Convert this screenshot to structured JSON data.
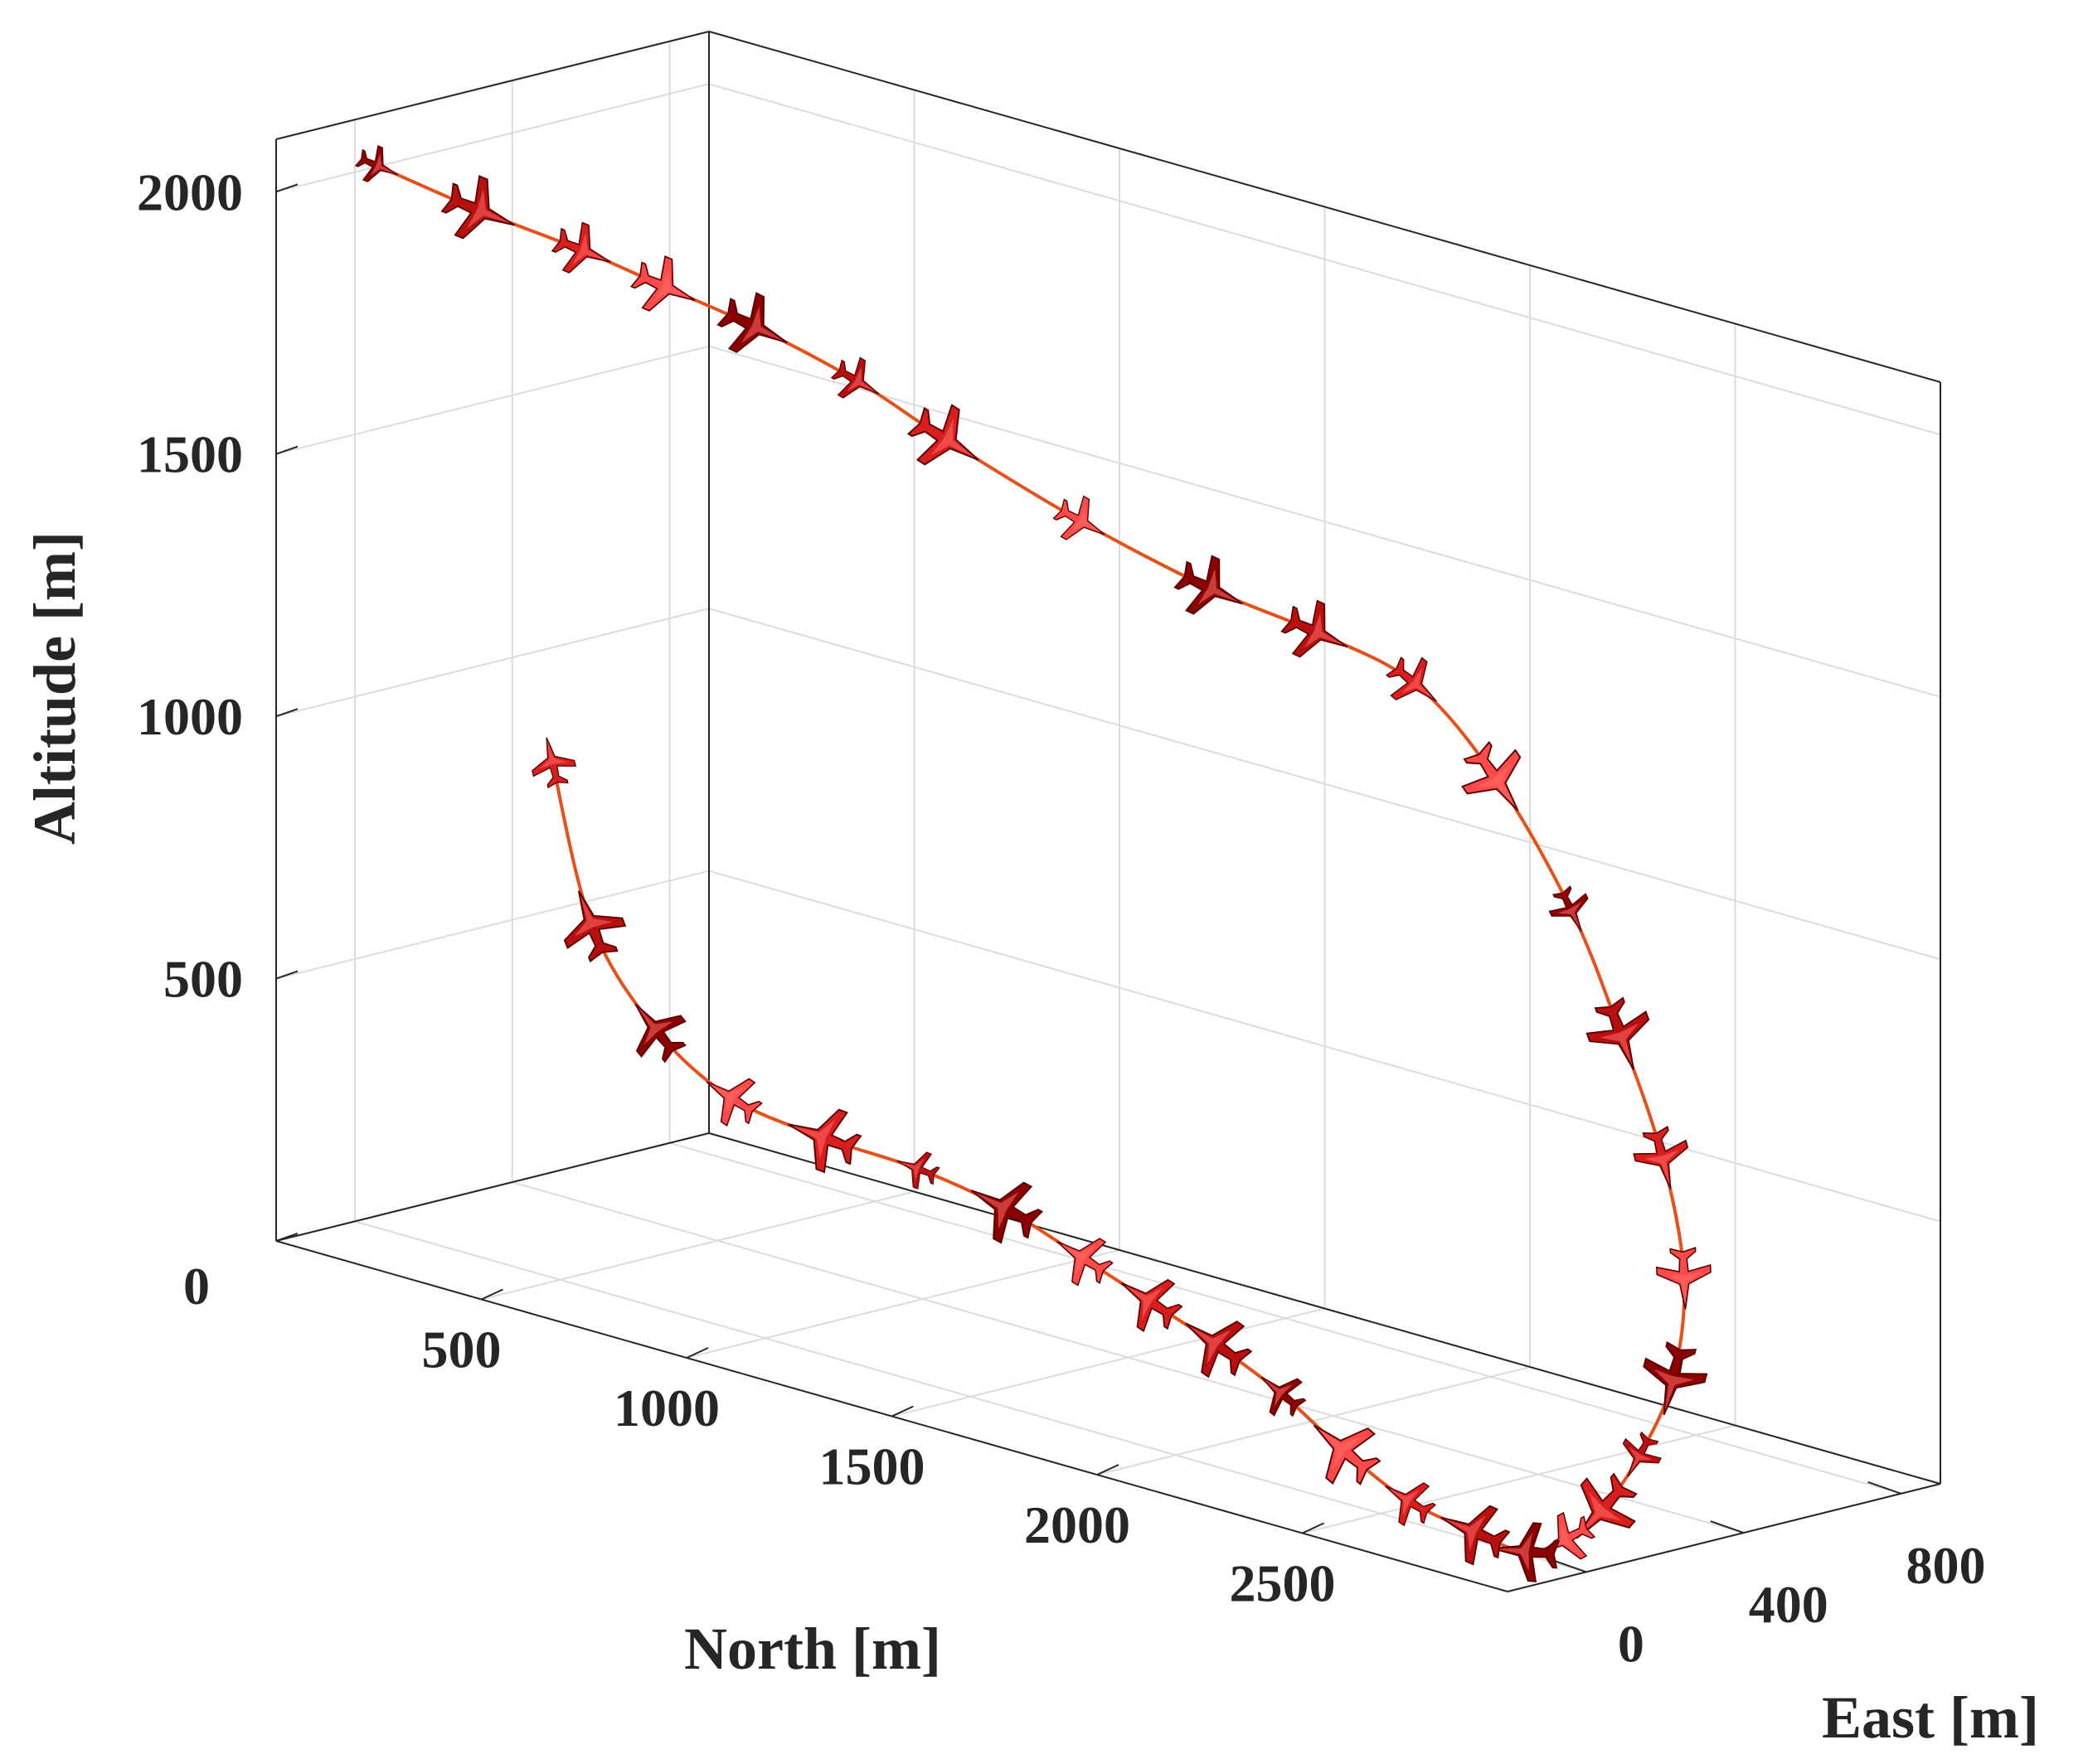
{
  "chart_data": {
    "type": "3d-line",
    "title": "",
    "xlabel": "North [m]",
    "ylabel": "East [m]",
    "zlabel": "Altitude [m]",
    "xlim": [
      0,
      3000
    ],
    "ylim": [
      -200,
      900
    ],
    "zlim": [
      0,
      2100
    ],
    "xticks": [
      500,
      1000,
      1500,
      2000,
      2500
    ],
    "yticks": [
      0,
      400,
      800
    ],
    "zticks": [
      0,
      500,
      1000,
      1500,
      2000
    ],
    "xtick_labels": [
      "500",
      "1000",
      "1500",
      "2000",
      "2500"
    ],
    "ytick_labels": [
      "0",
      "400",
      "800"
    ],
    "ztick_labels": [
      "0",
      "500",
      "1000",
      "1500",
      "2000"
    ],
    "grid": true,
    "box": true,
    "line_color": "#e8501a",
    "marker_colors": [
      "#8b0000",
      "#b80f0f",
      "#d91e1e",
      "#ff4a4a"
    ],
    "series": [
      {
        "style": "line-with-aircraft-markers",
        "north": [
          0,
          250,
          500,
          700,
          900,
          1120,
          1300,
          1560,
          1800,
          2000,
          2200,
          2400,
          2600,
          2750,
          2880,
          2970,
          2990,
          2965,
          2930,
          2900,
          2860,
          2780,
          2660,
          2520,
          2360,
          2180,
          1980,
          1780,
          1560,
          1330,
          1080,
          820,
          540,
          250,
          40
        ],
        "east": [
          60,
          60,
          60,
          60,
          80,
          110,
          150,
          220,
          300,
          360,
          400,
          400,
          380,
          350,
          320,
          280,
          230,
          170,
          110,
          50,
          -10,
          -60,
          -100,
          -120,
          -110,
          -90,
          -50,
          -10,
          20,
          40,
          60,
          100,
          200,
          340,
          460
        ],
        "altitude": [
          2000,
          1970,
          1950,
          1925,
          1890,
          1830,
          1750,
          1640,
          1550,
          1500,
          1440,
          1300,
          1100,
          900,
          700,
          500,
          320,
          180,
          80,
          30,
          10,
          40,
          80,
          150,
          220,
          270,
          300,
          330,
          370,
          390,
          390,
          400,
          450,
          560,
          800
        ]
      }
    ]
  }
}
